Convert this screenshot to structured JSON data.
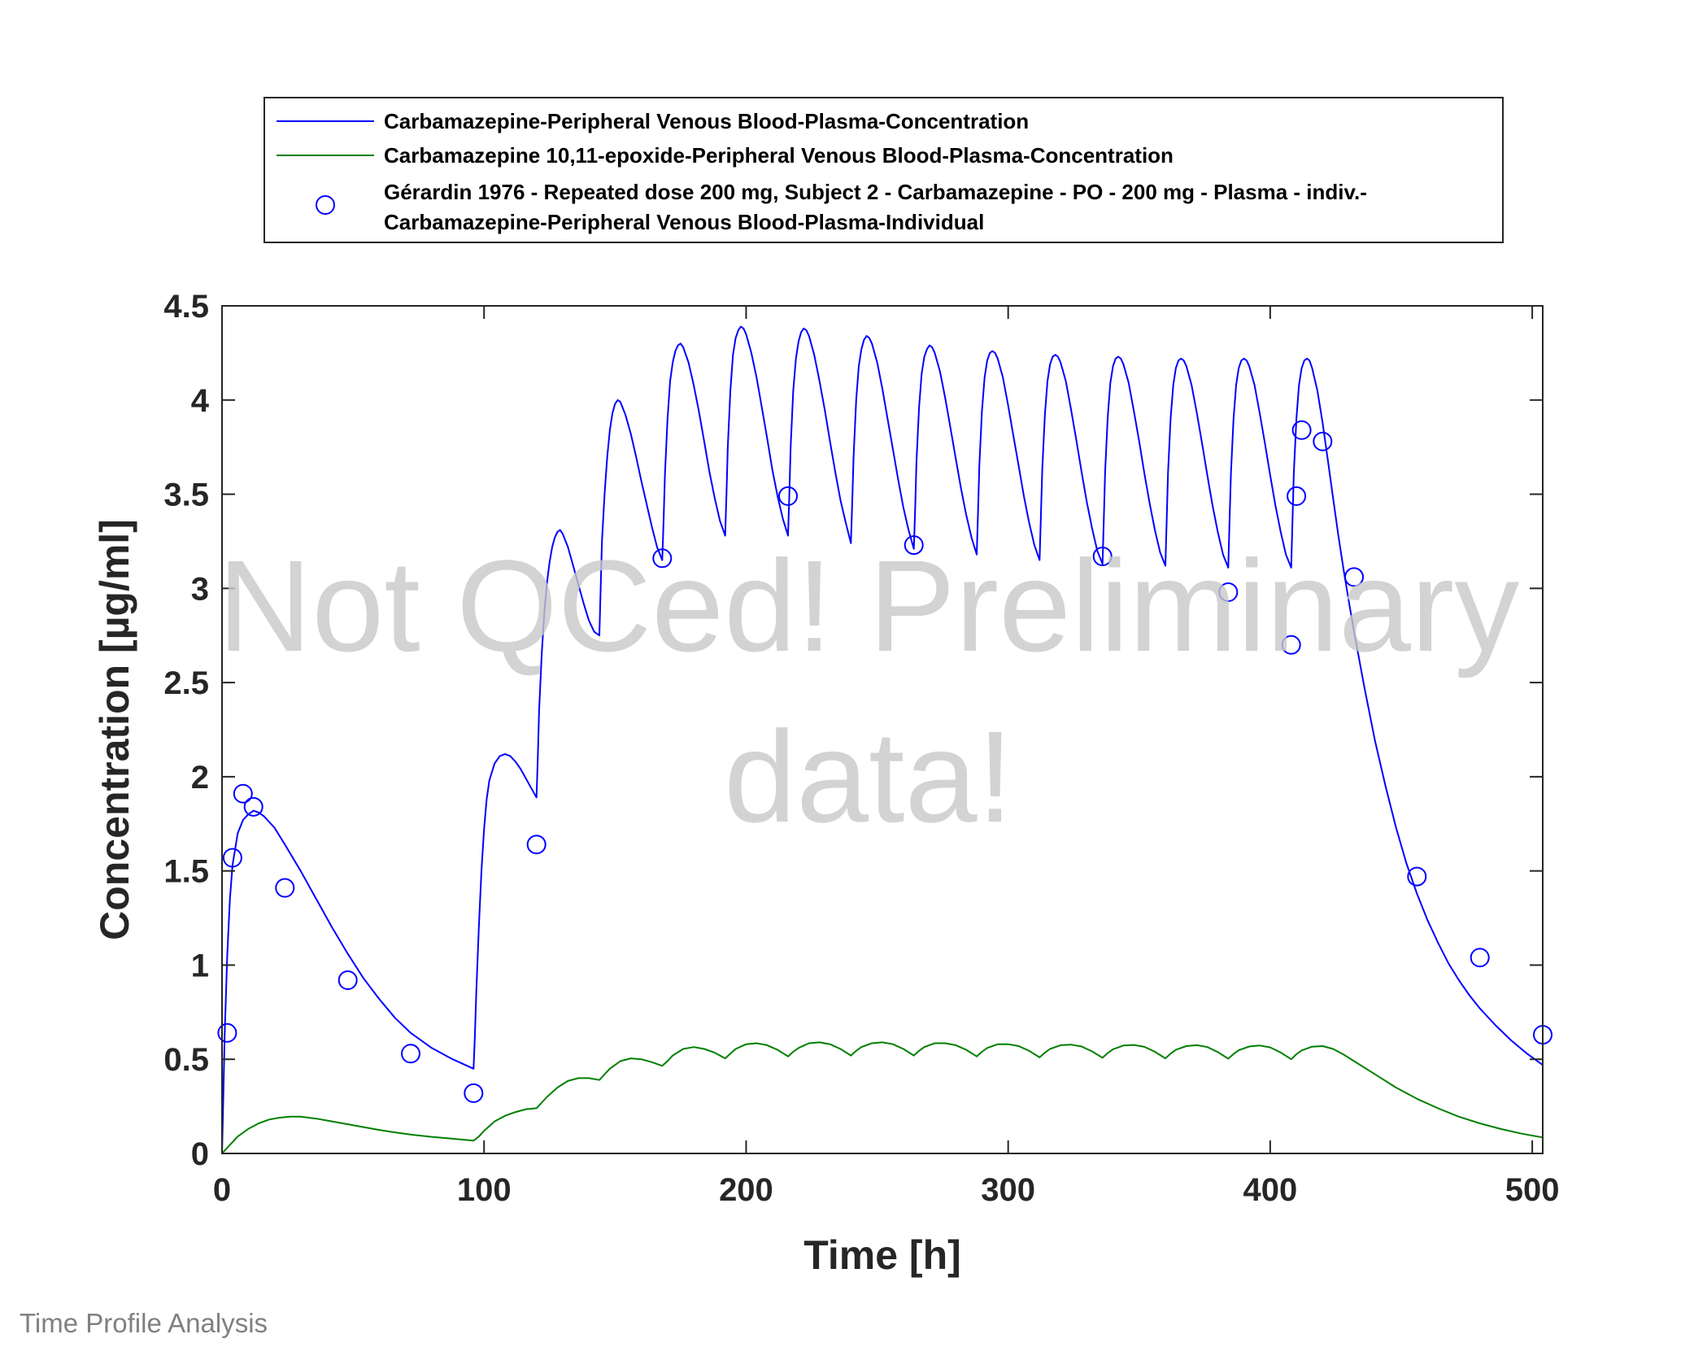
{
  "footer": "Time Profile Analysis",
  "watermark": {
    "line1": "Not QCed! Preliminary",
    "line2": "data!",
    "color": "#c8c8c8"
  },
  "chart_data": {
    "type": "line",
    "xlabel": "Time [h]",
    "ylabel": "Concentration [µg/ml]",
    "xlim": [
      0,
      504
    ],
    "ylim": [
      0,
      4.5
    ],
    "xticks": [
      0,
      100,
      200,
      300,
      400,
      500
    ],
    "yticks": [
      0,
      0.5,
      1,
      1.5,
      2,
      2.5,
      3,
      3.5,
      4,
      4.5
    ],
    "ytick_labels": [
      "0",
      "0.5",
      "1",
      "1.5",
      "2",
      "2.5",
      "3",
      "3.5",
      "4",
      "4.5"
    ],
    "grid": false,
    "legend_position": "top",
    "series": [
      {
        "name": "Carbamazepine-Peripheral Venous Blood-Plasma-Concentration",
        "kind": "line",
        "color": "#0000ff",
        "x": [
          0,
          0.5,
          1,
          2,
          3,
          4,
          6,
          8,
          10,
          12,
          14,
          16,
          20,
          24,
          30,
          36,
          42,
          48,
          54,
          60,
          66,
          72,
          80,
          88,
          96,
          96.5,
          97,
          98,
          99,
          100,
          101,
          102,
          104,
          106,
          108,
          110,
          112,
          114,
          116,
          118,
          120,
          120.5,
          121,
          122,
          123,
          124,
          125,
          126,
          127,
          128,
          129,
          130,
          132,
          134,
          136,
          138,
          140,
          142,
          144,
          144.5,
          145,
          146,
          147,
          148,
          149,
          150,
          151,
          152,
          154,
          156,
          158,
          160,
          162,
          164,
          166,
          168,
          168.5,
          169,
          170,
          171,
          172,
          173,
          174,
          175,
          176,
          178,
          180,
          182,
          184,
          186,
          188,
          190,
          192,
          192.5,
          193,
          194,
          195,
          196,
          197,
          198,
          199,
          200,
          202,
          204,
          206,
          208,
          210,
          212,
          214,
          216,
          216.5,
          217,
          218,
          219,
          220,
          221,
          222,
          223,
          224,
          226,
          228,
          230,
          232,
          234,
          236,
          238,
          240,
          240.5,
          241,
          242,
          243,
          244,
          245,
          246,
          247,
          248,
          250,
          252,
          254,
          256,
          258,
          260,
          262,
          264,
          264.5,
          265,
          266,
          267,
          268,
          269,
          270,
          271,
          272,
          274,
          276,
          278,
          280,
          282,
          284,
          286,
          288,
          288.5,
          289,
          290,
          291,
          292,
          293,
          294,
          295,
          296,
          298,
          300,
          302,
          304,
          306,
          308,
          310,
          312,
          312.5,
          313,
          314,
          315,
          316,
          317,
          318,
          319,
          320,
          322,
          324,
          326,
          328,
          330,
          332,
          334,
          336,
          336.5,
          337,
          338,
          339,
          340,
          341,
          342,
          343,
          344,
          346,
          348,
          350,
          352,
          354,
          356,
          358,
          360,
          360.5,
          361,
          362,
          363,
          364,
          365,
          366,
          367,
          368,
          370,
          372,
          374,
          376,
          378,
          380,
          382,
          384,
          384.5,
          385,
          386,
          387,
          388,
          389,
          390,
          391,
          392,
          394,
          396,
          398,
          400,
          402,
          404,
          406,
          408,
          408.5,
          409,
          410,
          411,
          412,
          413,
          414,
          415,
          416,
          418,
          420,
          422,
          424,
          426,
          428,
          430,
          432,
          436,
          440,
          444,
          448,
          452,
          456,
          460,
          464,
          468,
          472,
          476,
          480,
          486,
          492,
          498,
          504
        ],
        "y": [
          0,
          0.3,
          0.62,
          1.05,
          1.35,
          1.53,
          1.7,
          1.77,
          1.8,
          1.82,
          1.81,
          1.79,
          1.73,
          1.64,
          1.5,
          1.35,
          1.2,
          1.06,
          0.93,
          0.82,
          0.72,
          0.64,
          0.56,
          0.5,
          0.45,
          0.62,
          0.85,
          1.2,
          1.5,
          1.72,
          1.88,
          1.98,
          2.07,
          2.11,
          2.12,
          2.11,
          2.08,
          2.04,
          1.99,
          1.94,
          1.89,
          2.1,
          2.35,
          2.65,
          2.87,
          3.03,
          3.14,
          3.22,
          3.27,
          3.3,
          3.31,
          3.29,
          3.22,
          3.12,
          3.02,
          2.92,
          2.83,
          2.77,
          2.75,
          3.0,
          3.25,
          3.5,
          3.7,
          3.84,
          3.93,
          3.98,
          4.0,
          3.99,
          3.92,
          3.82,
          3.7,
          3.57,
          3.45,
          3.33,
          3.22,
          3.15,
          3.35,
          3.6,
          3.9,
          4.1,
          4.2,
          4.26,
          4.29,
          4.3,
          4.28,
          4.2,
          4.08,
          3.94,
          3.78,
          3.62,
          3.48,
          3.36,
          3.28,
          3.5,
          3.75,
          4.05,
          4.24,
          4.33,
          4.37,
          4.39,
          4.38,
          4.35,
          4.25,
          4.12,
          3.96,
          3.8,
          3.63,
          3.49,
          3.37,
          3.28,
          3.5,
          3.75,
          4.05,
          4.22,
          4.31,
          4.36,
          4.38,
          4.37,
          4.34,
          4.24,
          4.1,
          3.95,
          3.78,
          3.62,
          3.47,
          3.35,
          3.24,
          3.45,
          3.7,
          4.0,
          4.18,
          4.27,
          4.32,
          4.34,
          4.33,
          4.3,
          4.2,
          4.06,
          3.9,
          3.74,
          3.58,
          3.43,
          3.31,
          3.21,
          3.42,
          3.67,
          3.96,
          4.14,
          4.23,
          4.27,
          4.29,
          4.28,
          4.25,
          4.15,
          4.01,
          3.85,
          3.69,
          3.53,
          3.39,
          3.27,
          3.18,
          3.4,
          3.65,
          3.94,
          4.12,
          4.21,
          4.25,
          4.26,
          4.25,
          4.22,
          4.12,
          3.97,
          3.81,
          3.65,
          3.49,
          3.35,
          3.23,
          3.15,
          3.38,
          3.63,
          3.92,
          4.1,
          4.19,
          4.23,
          4.24,
          4.23,
          4.2,
          4.1,
          3.95,
          3.79,
          3.62,
          3.46,
          3.32,
          3.2,
          3.13,
          3.37,
          3.62,
          3.91,
          4.09,
          4.18,
          4.22,
          4.23,
          4.22,
          4.19,
          4.09,
          3.94,
          3.78,
          3.61,
          3.45,
          3.31,
          3.19,
          3.12,
          3.36,
          3.61,
          3.9,
          4.08,
          4.17,
          4.21,
          4.22,
          4.21,
          4.18,
          4.08,
          3.93,
          3.77,
          3.6,
          3.44,
          3.3,
          3.18,
          3.11,
          3.36,
          3.61,
          3.9,
          4.08,
          4.17,
          4.21,
          4.22,
          4.21,
          4.18,
          4.08,
          3.93,
          3.77,
          3.6,
          3.44,
          3.3,
          3.18,
          3.11,
          3.36,
          3.61,
          3.9,
          4.08,
          4.17,
          4.21,
          4.22,
          4.21,
          4.17,
          4.05,
          3.88,
          3.68,
          3.48,
          3.28,
          3.1,
          2.93,
          2.77,
          2.47,
          2.19,
          1.95,
          1.73,
          1.54,
          1.38,
          1.24,
          1.12,
          1.01,
          0.92,
          0.84,
          0.77,
          0.68,
          0.6,
          0.53,
          0.47
        ]
      },
      {
        "name": "Carbamazepine 10,11-epoxide-Peripheral Venous Blood-Plasma-Concentration",
        "kind": "line",
        "color": "#007f00",
        "x": [
          0,
          2,
          4,
          6,
          8,
          10,
          14,
          18,
          22,
          26,
          30,
          36,
          42,
          48,
          54,
          60,
          66,
          72,
          80,
          88,
          96,
          98,
          100,
          104,
          108,
          112,
          116,
          120,
          122,
          124,
          128,
          132,
          136,
          140,
          144,
          146,
          148,
          152,
          156,
          160,
          164,
          168,
          170,
          172,
          176,
          180,
          184,
          188,
          192,
          194,
          196,
          200,
          204,
          208,
          212,
          216,
          218,
          220,
          224,
          228,
          232,
          236,
          240,
          242,
          244,
          248,
          252,
          256,
          260,
          264,
          266,
          268,
          272,
          276,
          280,
          284,
          288,
          290,
          292,
          296,
          300,
          304,
          308,
          312,
          314,
          316,
          320,
          324,
          328,
          332,
          336,
          338,
          340,
          344,
          348,
          352,
          356,
          360,
          362,
          364,
          368,
          372,
          376,
          380,
          384,
          386,
          388,
          392,
          396,
          400,
          404,
          408,
          410,
          412,
          416,
          420,
          424,
          428,
          432,
          440,
          448,
          456,
          464,
          472,
          480,
          488,
          496,
          504
        ],
        "y": [
          0,
          0.03,
          0.06,
          0.09,
          0.11,
          0.13,
          0.16,
          0.18,
          0.19,
          0.195,
          0.195,
          0.185,
          0.17,
          0.155,
          0.14,
          0.125,
          0.112,
          0.1,
          0.088,
          0.078,
          0.068,
          0.09,
          0.12,
          0.17,
          0.2,
          0.22,
          0.235,
          0.24,
          0.27,
          0.3,
          0.35,
          0.385,
          0.4,
          0.4,
          0.39,
          0.42,
          0.45,
          0.49,
          0.505,
          0.5,
          0.485,
          0.465,
          0.49,
          0.52,
          0.555,
          0.565,
          0.555,
          0.535,
          0.505,
          0.53,
          0.555,
          0.58,
          0.585,
          0.575,
          0.55,
          0.515,
          0.54,
          0.56,
          0.585,
          0.59,
          0.58,
          0.555,
          0.52,
          0.545,
          0.565,
          0.585,
          0.59,
          0.58,
          0.555,
          0.52,
          0.545,
          0.565,
          0.585,
          0.585,
          0.575,
          0.55,
          0.515,
          0.54,
          0.56,
          0.58,
          0.58,
          0.57,
          0.545,
          0.51,
          0.535,
          0.555,
          0.575,
          0.578,
          0.568,
          0.542,
          0.508,
          0.533,
          0.553,
          0.573,
          0.576,
          0.566,
          0.54,
          0.505,
          0.53,
          0.55,
          0.57,
          0.575,
          0.565,
          0.538,
          0.503,
          0.528,
          0.548,
          0.568,
          0.573,
          0.563,
          0.536,
          0.5,
          0.527,
          0.547,
          0.567,
          0.57,
          0.555,
          0.525,
          0.49,
          0.42,
          0.35,
          0.29,
          0.24,
          0.195,
          0.16,
          0.13,
          0.105,
          0.085
        ]
      },
      {
        "name": "Gérardin 1976 - Repeated dose 200 mg, Subject 2 - Carbamazepine - PO - 200 mg - Plasma - indiv.- Carbamazepine-Peripheral Venous Blood-Plasma-Individual",
        "kind": "scatter",
        "marker": "circle",
        "color": "#0000ff",
        "x": [
          2,
          4,
          8,
          12,
          24,
          48,
          72,
          96,
          120,
          168,
          216,
          264,
          336,
          384,
          408,
          410,
          412,
          420,
          432,
          456,
          480,
          504
        ],
        "y": [
          0.64,
          1.57,
          1.91,
          1.84,
          1.41,
          0.92,
          0.53,
          0.32,
          1.64,
          3.16,
          3.49,
          3.23,
          3.17,
          2.98,
          2.7,
          3.49,
          3.84,
          3.78,
          3.06,
          1.47,
          1.04,
          0.63
        ]
      }
    ],
    "legend": {
      "entries": [
        {
          "lines": [
            "Carbamazepine-Peripheral Venous Blood-Plasma-Concentration"
          ]
        },
        {
          "lines": [
            "Carbamazepine 10,11-epoxide-Peripheral Venous Blood-Plasma-Concentration"
          ]
        },
        {
          "lines": [
            "Gérardin 1976 - Repeated dose 200 mg, Subject 2 - Carbamazepine - PO - 200 mg - Plasma - indiv.-",
            "Carbamazepine-Peripheral Venous Blood-Plasma-Individual"
          ]
        }
      ]
    }
  }
}
